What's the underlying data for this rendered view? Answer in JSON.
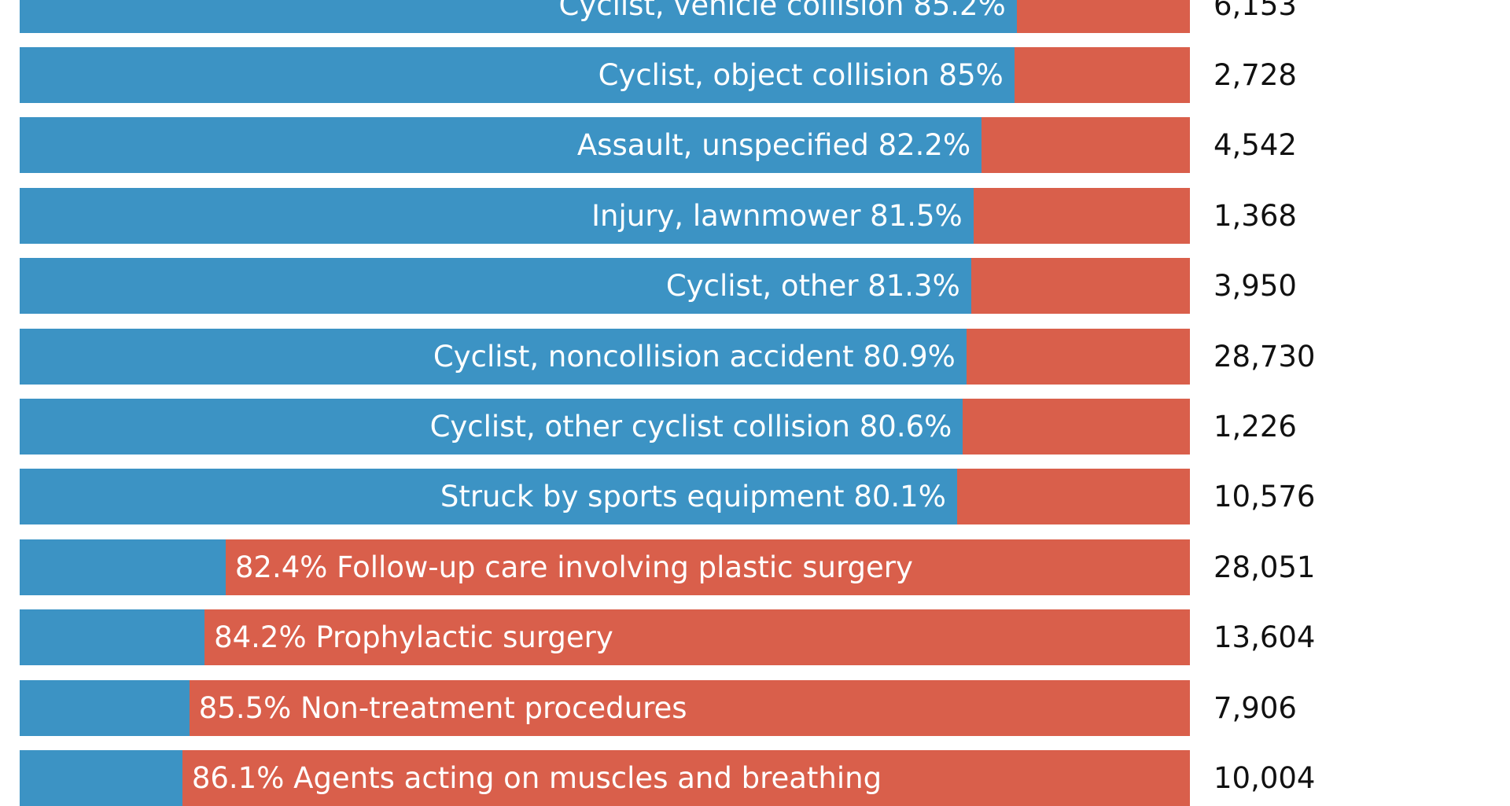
{
  "colors": {
    "blue": "#3c93c4",
    "red": "#d95f4b"
  },
  "chart_data": {
    "type": "bar",
    "orientation": "horizontal-stacked-100",
    "rows": [
      {
        "label": "Cyclist, vehicle collision",
        "pct": 85.2,
        "side": "blue",
        "count": "6,153"
      },
      {
        "label": "Cyclist, object collision",
        "pct": 85,
        "side": "blue",
        "count": "2,728"
      },
      {
        "label": "Assault, unspecified",
        "pct": 82.2,
        "side": "blue",
        "count": "4,542"
      },
      {
        "label": "Injury, lawnmower",
        "pct": 81.5,
        "side": "blue",
        "count": "1,368"
      },
      {
        "label": "Cyclist, other",
        "pct": 81.3,
        "side": "blue",
        "count": "3,950"
      },
      {
        "label": "Cyclist, noncollision accident",
        "pct": 80.9,
        "side": "blue",
        "count": "28,730"
      },
      {
        "label": "Cyclist, other cyclist collision",
        "pct": 80.6,
        "side": "blue",
        "count": "1,226"
      },
      {
        "label": "Struck by sports equipment",
        "pct": 80.1,
        "side": "blue",
        "count": "10,576"
      },
      {
        "label": "Follow-up care involving plastic surgery",
        "pct": 82.4,
        "side": "red",
        "count": "28,051"
      },
      {
        "label": "Prophylactic surgery",
        "pct": 84.2,
        "side": "red",
        "count": "13,604"
      },
      {
        "label": "Non-treatment procedures",
        "pct": 85.5,
        "side": "red",
        "count": "7,906"
      },
      {
        "label": "Agents acting on muscles and breathing",
        "pct": 86.1,
        "side": "red",
        "count": "10,004"
      }
    ]
  }
}
